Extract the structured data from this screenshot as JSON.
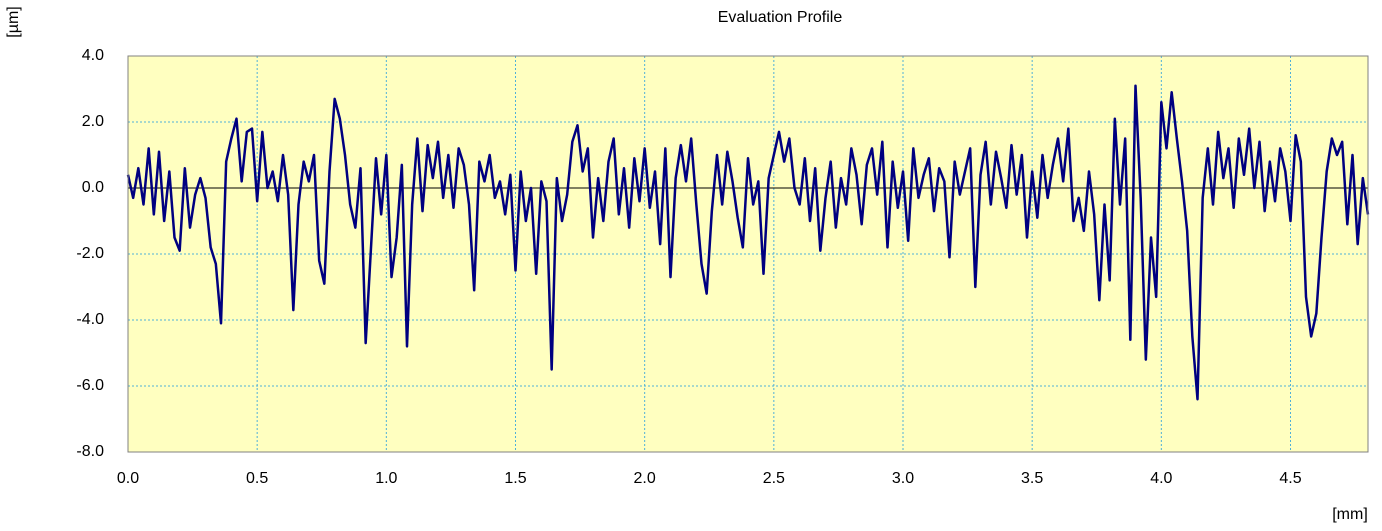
{
  "chart_data": {
    "type": "line",
    "title": "Evaluation Profile",
    "y_label": "[µm]",
    "x_label": "[mm]",
    "xlim": [
      0,
      4.8
    ],
    "ylim": [
      -8,
      4
    ],
    "xticks": [
      {
        "value": 0,
        "label": "0.0"
      },
      0.5,
      {
        "value": 1,
        "label": "1.0"
      },
      1.5,
      {
        "value": 2,
        "label": "2.0"
      },
      2.5,
      {
        "value": 3,
        "label": "3.0"
      },
      3.5,
      {
        "value": 4,
        "label": "4.0"
      },
      4.5
    ],
    "yticks": [
      {
        "value": -8,
        "label": "-8.0"
      },
      {
        "value": -6,
        "label": "-6.0"
      },
      {
        "value": -4,
        "label": "-4.0"
      },
      {
        "value": -2,
        "label": "-2.0"
      },
      {
        "value": 0,
        "label": "0.0"
      },
      {
        "value": 2,
        "label": "2.0"
      },
      {
        "value": 4,
        "label": "4.0"
      }
    ],
    "grid": true,
    "background": "#ffffc0",
    "grid_color": "#4fb0d8",
    "x": [
      0,
      0.02,
      0.04,
      0.06,
      0.08,
      0.1,
      0.12,
      0.14,
      0.16,
      0.18,
      0.2,
      0.22,
      0.24,
      0.26,
      0.28,
      0.3,
      0.32,
      0.34,
      0.36,
      0.38,
      0.4,
      0.42,
      0.44,
      0.46,
      0.48,
      0.5,
      0.52,
      0.54,
      0.56,
      0.58,
      0.6,
      0.62,
      0.64,
      0.66,
      0.68,
      0.7,
      0.72,
      0.74,
      0.76,
      0.78,
      0.8,
      0.82,
      0.84,
      0.86,
      0.88,
      0.9,
      0.92,
      0.94,
      0.96,
      0.98,
      1,
      1.02,
      1.04,
      1.06,
      1.08,
      1.1,
      1.12,
      1.14,
      1.16,
      1.18,
      1.2,
      1.22,
      1.24,
      1.26,
      1.28,
      1.3,
      1.32,
      1.34,
      1.36,
      1.38,
      1.4,
      1.42,
      1.44,
      1.46,
      1.48,
      1.5,
      1.52,
      1.54,
      1.56,
      1.58,
      1.6,
      1.62,
      1.64,
      1.66,
      1.68,
      1.7,
      1.72,
      1.74,
      1.76,
      1.78,
      1.8,
      1.82,
      1.84,
      1.86,
      1.88,
      1.9,
      1.92,
      1.94,
      1.96,
      1.98,
      2,
      2.02,
      2.04,
      2.06,
      2.08,
      2.1,
      2.12,
      2.14,
      2.16,
      2.18,
      2.2,
      2.22,
      2.24,
      2.26,
      2.28,
      2.3,
      2.32,
      2.34,
      2.36,
      2.38,
      2.4,
      2.42,
      2.44,
      2.46,
      2.48,
      2.5,
      2.52,
      2.54,
      2.56,
      2.58,
      2.6,
      2.62,
      2.64,
      2.66,
      2.68,
      2.7,
      2.72,
      2.74,
      2.76,
      2.78,
      2.8,
      2.82,
      2.84,
      2.86,
      2.88,
      2.9,
      2.92,
      2.94,
      2.96,
      2.98,
      3,
      3.02,
      3.04,
      3.06,
      3.08,
      3.1,
      3.12,
      3.14,
      3.16,
      3.18,
      3.2,
      3.22,
      3.24,
      3.26,
      3.28,
      3.3,
      3.32,
      3.34,
      3.36,
      3.38,
      3.4,
      3.42,
      3.44,
      3.46,
      3.48,
      3.5,
      3.52,
      3.54,
      3.56,
      3.58,
      3.6,
      3.62,
      3.64,
      3.66,
      3.68,
      3.7,
      3.72,
      3.74,
      3.76,
      3.78,
      3.8,
      3.82,
      3.84,
      3.86,
      3.88,
      3.9,
      3.92,
      3.94,
      3.96,
      3.98,
      4,
      4.02,
      4.04,
      4.06,
      4.08,
      4.1,
      4.12,
      4.14,
      4.16,
      4.18,
      4.2,
      4.22,
      4.24,
      4.26,
      4.28,
      4.3,
      4.32,
      4.34,
      4.36,
      4.38,
      4.4,
      4.42,
      4.44,
      4.46,
      4.48,
      4.5,
      4.52,
      4.54,
      4.56,
      4.58,
      4.6,
      4.62,
      4.64,
      4.66,
      4.68,
      4.7,
      4.72,
      4.74,
      4.76,
      4.78,
      4.8
    ],
    "series": [
      {
        "color": "#000080",
        "values": [
          0.4,
          -0.3,
          0.6,
          -0.5,
          1.2,
          -0.8,
          1.1,
          -1.0,
          0.5,
          -1.5,
          -1.9,
          0.6,
          -1.2,
          -0.2,
          0.3,
          -0.3,
          -1.8,
          -2.3,
          -4.1,
          0.8,
          1.5,
          2.1,
          0.2,
          1.7,
          1.8,
          -0.4,
          1.7,
          0.0,
          0.5,
          -0.4,
          1.0,
          -0.2,
          -3.7,
          -0.5,
          0.8,
          0.2,
          1.0,
          -2.2,
          -2.9,
          0.5,
          2.7,
          2.1,
          1.0,
          -0.5,
          -1.2,
          0.6,
          -4.7,
          -1.9,
          0.9,
          -0.8,
          1.0,
          -2.7,
          -1.5,
          0.7,
          -4.8,
          -0.5,
          1.5,
          -0.7,
          1.3,
          0.3,
          1.4,
          -0.3,
          1.0,
          -0.6,
          1.2,
          0.7,
          -0.5,
          -3.1,
          0.8,
          0.2,
          1.0,
          -0.3,
          0.2,
          -0.8,
          0.4,
          -2.5,
          0.5,
          -1.0,
          0.0,
          -2.6,
          0.2,
          -0.4,
          -5.5,
          0.3,
          -1.0,
          -0.2,
          1.4,
          1.9,
          0.5,
          1.2,
          -1.5,
          0.3,
          -1.0,
          0.8,
          1.5,
          -0.8,
          0.6,
          -1.2,
          0.9,
          -0.4,
          1.2,
          -0.6,
          0.5,
          -1.7,
          1.2,
          -2.7,
          0.3,
          1.3,
          0.2,
          1.5,
          -0.5,
          -2.3,
          -3.2,
          -0.7,
          1.0,
          -0.5,
          1.1,
          0.2,
          -0.9,
          -1.8,
          0.9,
          -0.5,
          0.2,
          -2.6,
          0.3,
          1.0,
          1.7,
          0.8,
          1.5,
          0.0,
          -0.5,
          0.9,
          -1.0,
          0.6,
          -1.9,
          -0.3,
          0.8,
          -1.2,
          0.3,
          -0.5,
          1.2,
          0.4,
          -1.1,
          0.7,
          1.2,
          -0.2,
          1.4,
          -1.8,
          0.8,
          -0.6,
          0.5,
          -1.6,
          1.2,
          -0.3,
          0.4,
          0.9,
          -0.7,
          0.6,
          0.2,
          -2.1,
          0.8,
          -0.2,
          0.5,
          1.2,
          -3.0,
          0.4,
          1.4,
          -0.5,
          1.1,
          0.3,
          -0.6,
          1.3,
          -0.2,
          1.0,
          -1.5,
          0.5,
          -0.9,
          1.0,
          -0.3,
          0.7,
          1.5,
          0.2,
          1.8,
          -1.0,
          -0.3,
          -1.3,
          0.5,
          -0.8,
          -3.4,
          -0.5,
          -2.8,
          2.1,
          -0.5,
          1.5,
          -4.6,
          3.1,
          -0.3,
          -5.2,
          -1.5,
          -3.3,
          2.6,
          1.2,
          2.9,
          1.5,
          0.2,
          -1.3,
          -4.5,
          -6.4,
          -0.3,
          1.2,
          -0.5,
          1.7,
          0.3,
          1.2,
          -0.6,
          1.5,
          0.4,
          1.8,
          0.0,
          1.4,
          -0.7,
          0.8,
          -0.4,
          1.2,
          0.5,
          -1.0,
          1.6,
          0.8,
          -3.3,
          -4.5,
          -3.8,
          -1.5,
          0.5,
          1.5,
          1.0,
          1.4,
          -1.1,
          1.0,
          -1.7,
          0.3,
          -0.8
        ]
      }
    ]
  }
}
